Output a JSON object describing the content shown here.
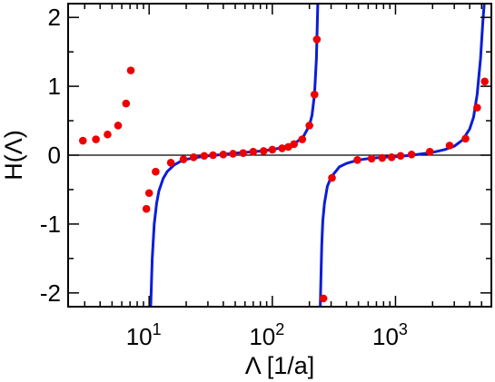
{
  "chart_data": {
    "type": "scatter",
    "title": "",
    "xlabel": "Λ [1/a]",
    "ylabel": "H(Λ)",
    "xscale": "log",
    "xlim": [
      2.2,
      6000
    ],
    "ylim": [
      -2.2,
      2.2
    ],
    "grid": false,
    "legend": "none",
    "reference_line_y": 0,
    "x_major_ticks": [
      10,
      100,
      1000
    ],
    "x_tick_labels": [
      {
        "base": "10",
        "exp": "1"
      },
      {
        "base": "10",
        "exp": "2"
      },
      {
        "base": "10",
        "exp": "3"
      }
    ],
    "y_ticks": [
      -2,
      -1,
      0,
      1,
      2
    ],
    "y_tick_labels": [
      "-2",
      "-1",
      "0",
      "1",
      "2"
    ],
    "colors": {
      "points": "#ee0000",
      "curve": "#0a1ed6",
      "axes": "#000000"
    },
    "series": [
      {
        "kind": "points",
        "x": [
          2.9,
          3.7,
          4.6,
          5.6,
          6.5,
          7.1,
          9.5,
          10.0,
          11.3,
          15,
          19,
          23,
          28,
          33,
          40,
          48,
          58,
          70,
          85,
          100,
          120,
          135,
          150,
          175,
          200,
          220,
          230,
          260,
          305,
          490,
          640,
          780,
          930,
          1100,
          1350,
          1900,
          2750,
          3700,
          4600,
          5300
        ],
        "y": [
          0.21,
          0.23,
          0.3,
          0.43,
          0.75,
          1.23,
          -0.78,
          -0.55,
          -0.24,
          -0.11,
          -0.06,
          -0.03,
          -0.01,
          0.0,
          0.01,
          0.02,
          0.03,
          0.05,
          0.06,
          0.08,
          0.1,
          0.12,
          0.16,
          0.23,
          0.43,
          0.88,
          1.68,
          -2.08,
          -0.33,
          -0.07,
          -0.05,
          -0.04,
          -0.03,
          -0.01,
          0.01,
          0.05,
          0.14,
          0.24,
          0.69,
          1.07
        ]
      },
      {
        "kind": "curve",
        "x": [
          10.3,
          10.6,
          11,
          11.5,
          12,
          13,
          14,
          16,
          18,
          20,
          25,
          30,
          40,
          50,
          60,
          80,
          100,
          120,
          140,
          160,
          180,
          200,
          210,
          220,
          228,
          234
        ],
        "y": [
          -2.2,
          -1.5,
          -1.0,
          -0.7,
          -0.52,
          -0.34,
          -0.24,
          -0.14,
          -0.09,
          -0.06,
          -0.03,
          -0.01,
          0.01,
          0.03,
          0.04,
          0.06,
          0.08,
          0.11,
          0.15,
          0.2,
          0.28,
          0.43,
          0.58,
          0.88,
          1.4,
          2.2
        ]
      },
      {
        "kind": "curve",
        "x": [
          245,
          248,
          252,
          257,
          265,
          280,
          300,
          350,
          400,
          500,
          600,
          800,
          1000,
          1200,
          1500,
          2000,
          2500,
          3000,
          3500,
          4000,
          4300,
          4600,
          4900,
          5100,
          5250
        ],
        "y": [
          -2.2,
          -1.8,
          -1.3,
          -0.95,
          -0.7,
          -0.45,
          -0.32,
          -0.17,
          -0.12,
          -0.07,
          -0.05,
          -0.03,
          -0.02,
          -0.01,
          0.01,
          0.04,
          0.08,
          0.13,
          0.22,
          0.38,
          0.55,
          0.88,
          1.4,
          1.9,
          2.2
        ]
      }
    ]
  }
}
